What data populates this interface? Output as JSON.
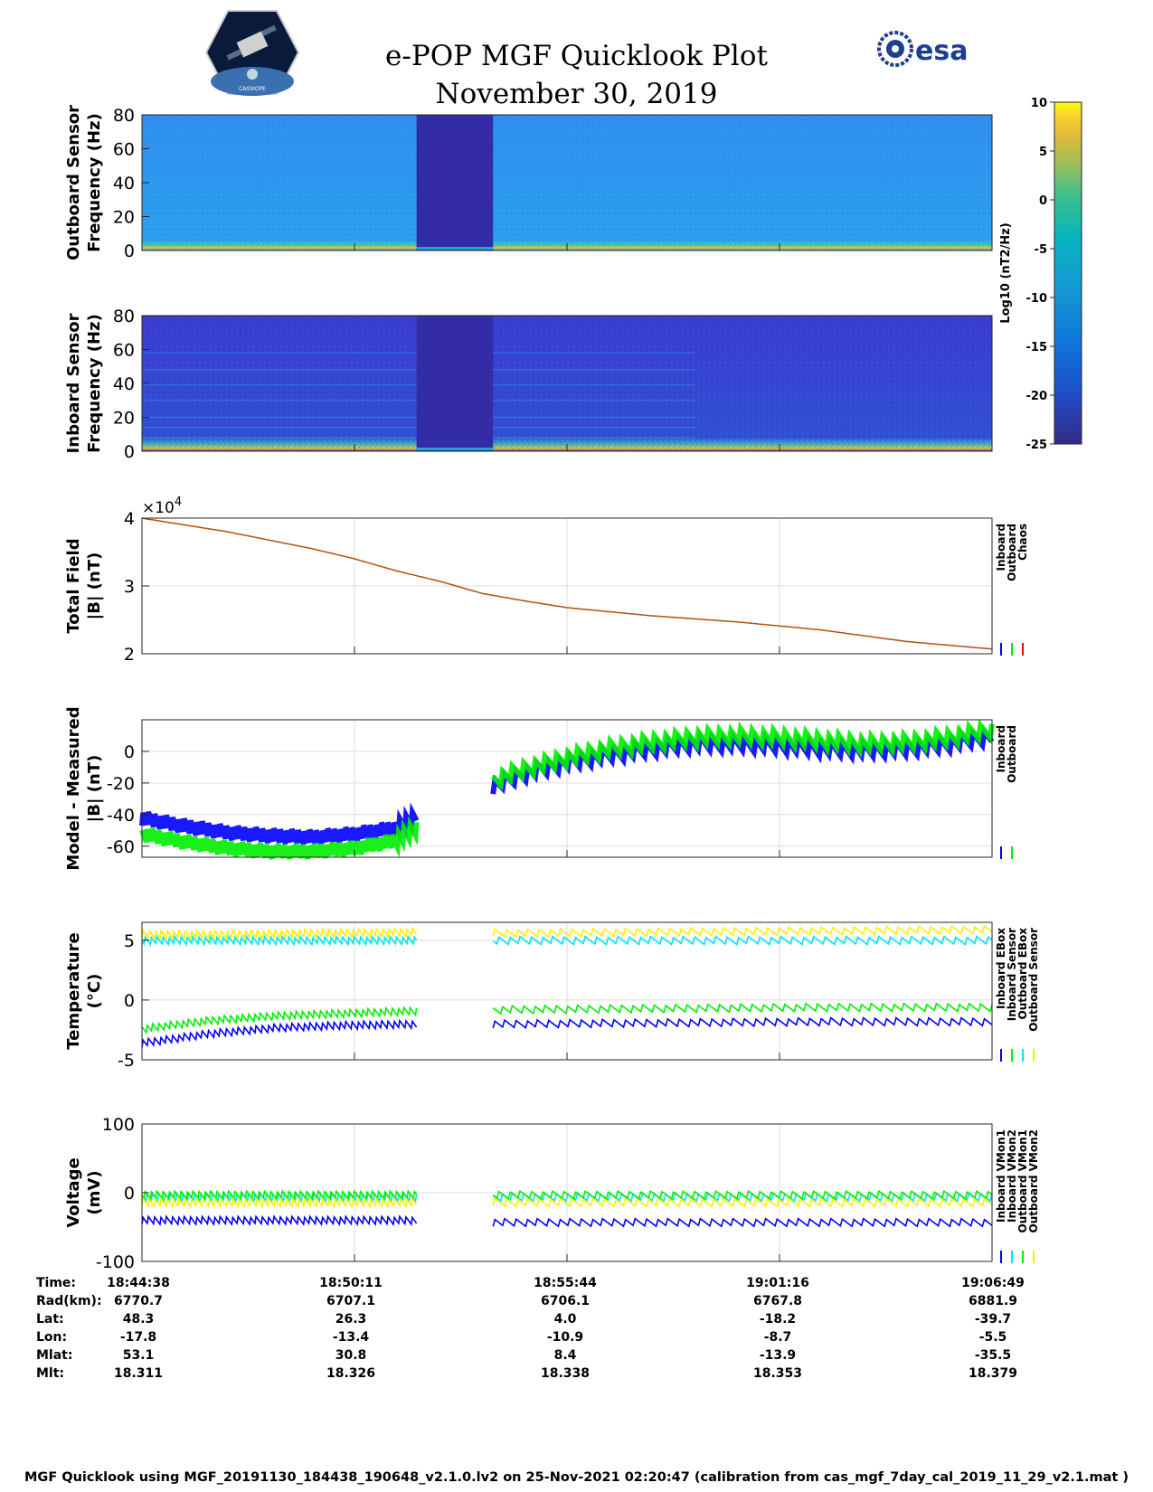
{
  "title": "e-POP MGF Quicklook Plot",
  "date": "November 30, 2019",
  "logos": {
    "esa_text": "esa",
    "mission_text": "CASSIOPE"
  },
  "colors": {
    "inboard": "#0000ff",
    "outboard": "#00ee00",
    "chaos": "#ff0000",
    "cyan": "#00e5ee",
    "yellow": "#ffee00"
  },
  "chart_data": [
    {
      "type": "heatmap",
      "panel": "outboard_spectrogram",
      "ylabel": [
        "Outboard Sensor",
        "Frequency (Hz)"
      ],
      "ylim": [
        0,
        80
      ],
      "yticks": [
        0,
        20,
        40,
        60,
        80
      ],
      "gap_fraction": [
        0.323,
        0.413
      ],
      "colorbar": {
        "label": "Log10 (nT2/Hz)",
        "lim": [
          -25,
          10
        ],
        "ticks": [
          10,
          5,
          0,
          -5,
          -10,
          -15,
          -20,
          -25
        ]
      }
    },
    {
      "type": "heatmap",
      "panel": "inboard_spectrogram",
      "ylabel": [
        "Inboard Sensor",
        "Frequency (Hz)"
      ],
      "ylim": [
        0,
        80
      ],
      "yticks": [
        0,
        20,
        40,
        60,
        80
      ],
      "gap_fraction": [
        0.323,
        0.413
      ]
    },
    {
      "type": "line",
      "panel": "total_field",
      "ylabel": [
        "Total Field",
        "|B| (nT)"
      ],
      "ylim": [
        2,
        4
      ],
      "yticks": [
        2,
        3,
        4
      ],
      "exponent_label": "×10",
      "exponent": "4",
      "x": [
        0,
        0.1,
        0.2,
        0.25,
        0.3,
        0.35,
        0.4,
        0.45,
        0.5,
        0.6,
        0.7,
        0.8,
        0.9,
        1.0
      ],
      "series": [
        {
          "name": "Chaos",
          "values": [
            4.0,
            3.8,
            3.55,
            3.4,
            3.22,
            3.07,
            2.89,
            2.78,
            2.68,
            2.56,
            2.47,
            2.35,
            2.18,
            2.07
          ]
        }
      ],
      "legend": [
        "Inboard",
        "Outboard",
        "Chaos"
      ]
    },
    {
      "type": "line",
      "panel": "model_minus_measured",
      "ylabel": [
        "Model - Measured",
        "|B| (nT)"
      ],
      "ylim": [
        -67,
        20
      ],
      "yticks": [
        -60,
        -40,
        -20,
        0
      ],
      "series": [
        {
          "name": "Inboard",
          "segments": [
            {
              "x": [
                0,
                0.05,
                0.1,
                0.15,
                0.2,
                0.25,
                0.3,
                0.323
              ],
              "y": [
                -42,
                -47,
                -51,
                -53,
                -54,
                -52,
                -48,
                -40
              ]
            },
            {
              "x": [
                0.413,
                0.45,
                0.5,
                0.55,
                0.6,
                0.65,
                0.7,
                0.75,
                0.8,
                0.85,
                0.9,
                0.95,
                1.0
              ],
              "y": [
                -22,
                -14,
                -7,
                -2,
                2,
                5,
                5,
                4,
                2,
                1,
                2,
                5,
                10
              ]
            }
          ]
        },
        {
          "name": "Outboard",
          "segments": [
            {
              "x": [
                0,
                0.05,
                0.1,
                0.15,
                0.2,
                0.25,
                0.3,
                0.323
              ],
              "y": [
                -52,
                -57,
                -61,
                -63,
                -63,
                -61,
                -56,
                -48
              ]
            },
            {
              "x": [
                0.413,
                0.45,
                0.5,
                0.55,
                0.6,
                0.65,
                0.7,
                0.75,
                0.8,
                0.85,
                0.9,
                0.95,
                1.0
              ],
              "y": [
                -18,
                -11,
                -4,
                2,
                6,
                9,
                10,
                9,
                7,
                5,
                6,
                9,
                14
              ]
            }
          ]
        }
      ],
      "legend": [
        "Inboard",
        "Outboard"
      ]
    },
    {
      "type": "line",
      "panel": "temperature",
      "ylabel": [
        "Temperature",
        "(°C)"
      ],
      "ylim": [
        -5,
        6.5
      ],
      "yticks": [
        -5,
        0,
        5
      ],
      "series": [
        {
          "name": "Inboard EBox",
          "segments": [
            {
              "x": [
                0,
                0.08,
                0.16,
                0.24,
                0.323
              ],
              "y": [
                -3.6,
                -2.8,
                -2.3,
                -2.1,
                -2.0
              ]
            },
            {
              "x": [
                0.413,
                0.6,
                0.8,
                1.0
              ],
              "y": [
                -2.0,
                -1.9,
                -1.8,
                -1.8
              ]
            }
          ]
        },
        {
          "name": "Inboard Sensor",
          "segments": [
            {
              "x": [
                0,
                0.08,
                0.16,
                0.24,
                0.323
              ],
              "y": [
                -2.4,
                -1.7,
                -1.3,
                -1.1,
                -0.9
              ]
            },
            {
              "x": [
                0.413,
                0.6,
                0.8,
                1.0
              ],
              "y": [
                -0.8,
                -0.7,
                -0.6,
                -0.6
              ]
            }
          ]
        },
        {
          "name": "Outboard EBox",
          "segments": [
            {
              "x": [
                0,
                0.323
              ],
              "y": [
                5.0,
                5.0
              ]
            },
            {
              "x": [
                0.413,
                1.0
              ],
              "y": [
                5.0,
                5.0
              ]
            }
          ]
        },
        {
          "name": "Outboard Sensor",
          "segments": [
            {
              "x": [
                0,
                0.1,
                0.2,
                0.323
              ],
              "y": [
                5.5,
                5.5,
                5.6,
                5.7
              ]
            },
            {
              "x": [
                0.413,
                0.6,
                0.8,
                1.0
              ],
              "y": [
                5.6,
                5.7,
                5.8,
                5.9
              ]
            }
          ]
        }
      ],
      "legend": [
        "Inboard EBox",
        "Inboard Sensor",
        "Outboard EBox",
        "Outboard Sensor"
      ]
    },
    {
      "type": "line",
      "panel": "voltage",
      "ylabel": [
        "Voltage",
        "(mV)"
      ],
      "ylim": [
        -100,
        100
      ],
      "yticks": [
        -100,
        0,
        100
      ],
      "series": [
        {
          "name": "Inboard VMon1",
          "segments": [
            {
              "x": [
                0,
                0.323
              ],
              "y": [
                -40,
                -40
              ]
            },
            {
              "x": [
                0.413,
                1.0
              ],
              "y": [
                -43,
                -43
              ]
            }
          ]
        },
        {
          "name": "Inboard VMon2",
          "segments": [
            {
              "x": [
                0,
                0.323
              ],
              "y": [
                -6,
                -6
              ]
            },
            {
              "x": [
                0.413,
                1.0
              ],
              "y": [
                -6,
                -6
              ]
            }
          ]
        },
        {
          "name": "Outboard VMon1",
          "segments": [
            {
              "x": [
                0,
                0.323
              ],
              "y": [
                -3,
                -3
              ]
            },
            {
              "x": [
                0.413,
                1.0
              ],
              "y": [
                -3,
                -3
              ]
            }
          ]
        },
        {
          "name": "Outboard VMon2",
          "segments": [
            {
              "x": [
                0,
                0.323
              ],
              "y": [
                -14,
                -14
              ]
            },
            {
              "x": [
                0.413,
                1.0
              ],
              "y": [
                -14,
                -14
              ]
            }
          ]
        }
      ],
      "legend": [
        "Inboard VMon1",
        "Inboard VMon2",
        "Outboard VMon1",
        "Outboard VMon2"
      ]
    }
  ],
  "xaxis": {
    "ticks": [
      0,
      0.25,
      0.5,
      0.75,
      1.0
    ],
    "rows": [
      {
        "label": "Time:",
        "values": [
          "18:44:38",
          "18:50:11",
          "18:55:44",
          "19:01:16",
          "19:06:49"
        ]
      },
      {
        "label": "Rad(km):",
        "values": [
          "6770.7",
          "6707.1",
          "6706.1",
          "6767.8",
          "6881.9"
        ]
      },
      {
        "label": "Lat:",
        "values": [
          "48.3",
          "26.3",
          "4.0",
          "-18.2",
          "-39.7"
        ]
      },
      {
        "label": "Lon:",
        "values": [
          "-17.8",
          "-13.4",
          "-10.9",
          "-8.7",
          "-5.5"
        ]
      },
      {
        "label": "Mlat:",
        "values": [
          "53.1",
          "30.8",
          "8.4",
          "-13.9",
          "-35.5"
        ]
      },
      {
        "label": "Mlt:",
        "values": [
          "18.311",
          "18.326",
          "18.338",
          "18.353",
          "18.379"
        ]
      }
    ]
  },
  "footer": "MGF Quicklook using MGF_20191130_184438_190648_v2.1.0.lv2 on 25-Nov-2021 02:20:47 (calibration from cas_mgf_7day_cal_2019_11_29_v2.1.mat )"
}
